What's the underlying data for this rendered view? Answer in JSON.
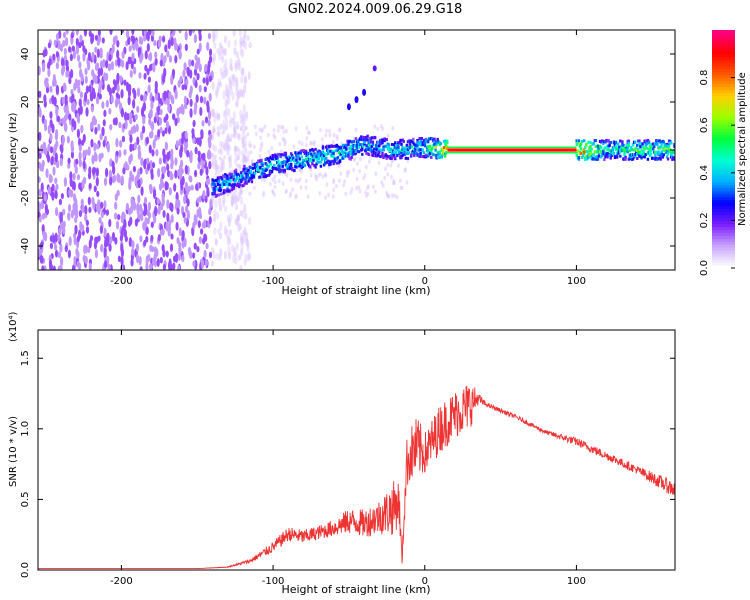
{
  "figure_title": "GN02.2024.009.06.29.G18",
  "chart_data": [
    {
      "type": "heatmap",
      "panel": "spectrogram",
      "xlabel": "Height of straight line (km)",
      "ylabel": "Frequency (Hz)",
      "xlim": [
        -255,
        165
      ],
      "ylim": [
        -50,
        50
      ],
      "x_ticks": [
        -200,
        -100,
        0,
        100
      ],
      "y_ticks": [
        -40,
        -20,
        0,
        20,
        40
      ],
      "colorbar": {
        "label": "Normalized spectral amplitude",
        "range": [
          0.0,
          1.0
        ],
        "ticks": [
          "0.0",
          "0.2",
          "0.4",
          "0.6",
          "0.8"
        ],
        "colors": [
          "#ffffff",
          "#c9a3ff",
          "#7a1cff",
          "#0000ff",
          "#00b4ff",
          "#00ffd0",
          "#00ff3c",
          "#9cff00",
          "#ffd000",
          "#ff5a00",
          "#ff0000",
          "#ff0080"
        ]
      },
      "features": [
        {
          "name": "noise",
          "x_range": [
            -255,
            -140
          ],
          "freq_range": [
            -50,
            50
          ],
          "amplitude": 0.1
        },
        {
          "name": "signal-branch",
          "x": [
            -140,
            -120,
            -100,
            -80,
            -60,
            -40,
            -20,
            0,
            20,
            40,
            60,
            80,
            100,
            120,
            140,
            165
          ],
          "freq": [
            -16,
            -11,
            -6,
            -4,
            -2,
            2,
            0,
            1,
            0,
            0,
            0,
            0,
            0,
            0,
            0,
            0
          ],
          "amplitude": [
            0.45,
            0.45,
            0.5,
            0.5,
            0.5,
            0.45,
            0.45,
            0.5,
            1.0,
            1.0,
            1.0,
            1.0,
            1.0,
            0.5,
            0.6,
            0.6
          ]
        },
        {
          "name": "upper-streak",
          "x": [
            -50,
            -45,
            -40
          ],
          "freq": [
            18,
            21,
            24
          ],
          "amplitude": 0.25
        },
        {
          "name": "isolated-blob",
          "x": [
            -33
          ],
          "freq": [
            34
          ],
          "amplitude": 0.2
        }
      ]
    },
    {
      "type": "line",
      "panel": "snr",
      "xlabel": "Height of straight line (km)",
      "ylabel": "SNR (10 * v/v)",
      "scale_label": "(x10⁴)",
      "xlim": [
        -255,
        165
      ],
      "ylim": [
        0,
        1.7
      ],
      "x_ticks": [
        -200,
        -100,
        0,
        100
      ],
      "y_ticks": [
        "0.0",
        "0.5",
        "1.0",
        "1.5"
      ],
      "line_color": "#ee3333",
      "series": [
        {
          "x": [
            -255,
            -200,
            -150,
            -130,
            -115,
            -100,
            -90,
            -80,
            -70,
            -60,
            -50,
            -40,
            -30,
            -20,
            -17,
            -15,
            -12,
            -10,
            -5,
            0,
            10,
            20,
            30,
            35,
            40,
            60,
            80,
            100,
            120,
            140,
            165
          ],
          "y": [
            0.01,
            0.01,
            0.01,
            0.02,
            0.06,
            0.15,
            0.24,
            0.22,
            0.25,
            0.28,
            0.32,
            0.3,
            0.34,
            0.38,
            0.45,
            0.05,
            0.7,
            0.75,
            0.8,
            0.78,
            0.95,
            1.05,
            1.12,
            1.2,
            1.17,
            1.08,
            0.97,
            0.9,
            0.8,
            0.7,
            0.55
          ],
          "spread": [
            0,
            0,
            0,
            0.005,
            0.03,
            0.08,
            0.1,
            0.1,
            0.1,
            0.12,
            0.18,
            0.2,
            0.25,
            0.4,
            0.3,
            0.1,
            0.35,
            0.4,
            0.45,
            0.3,
            0.35,
            0.35,
            0.35,
            0.1,
            0.03,
            0.03,
            0.03,
            0.06,
            0.06,
            0.06,
            0.12
          ]
        }
      ]
    }
  ]
}
